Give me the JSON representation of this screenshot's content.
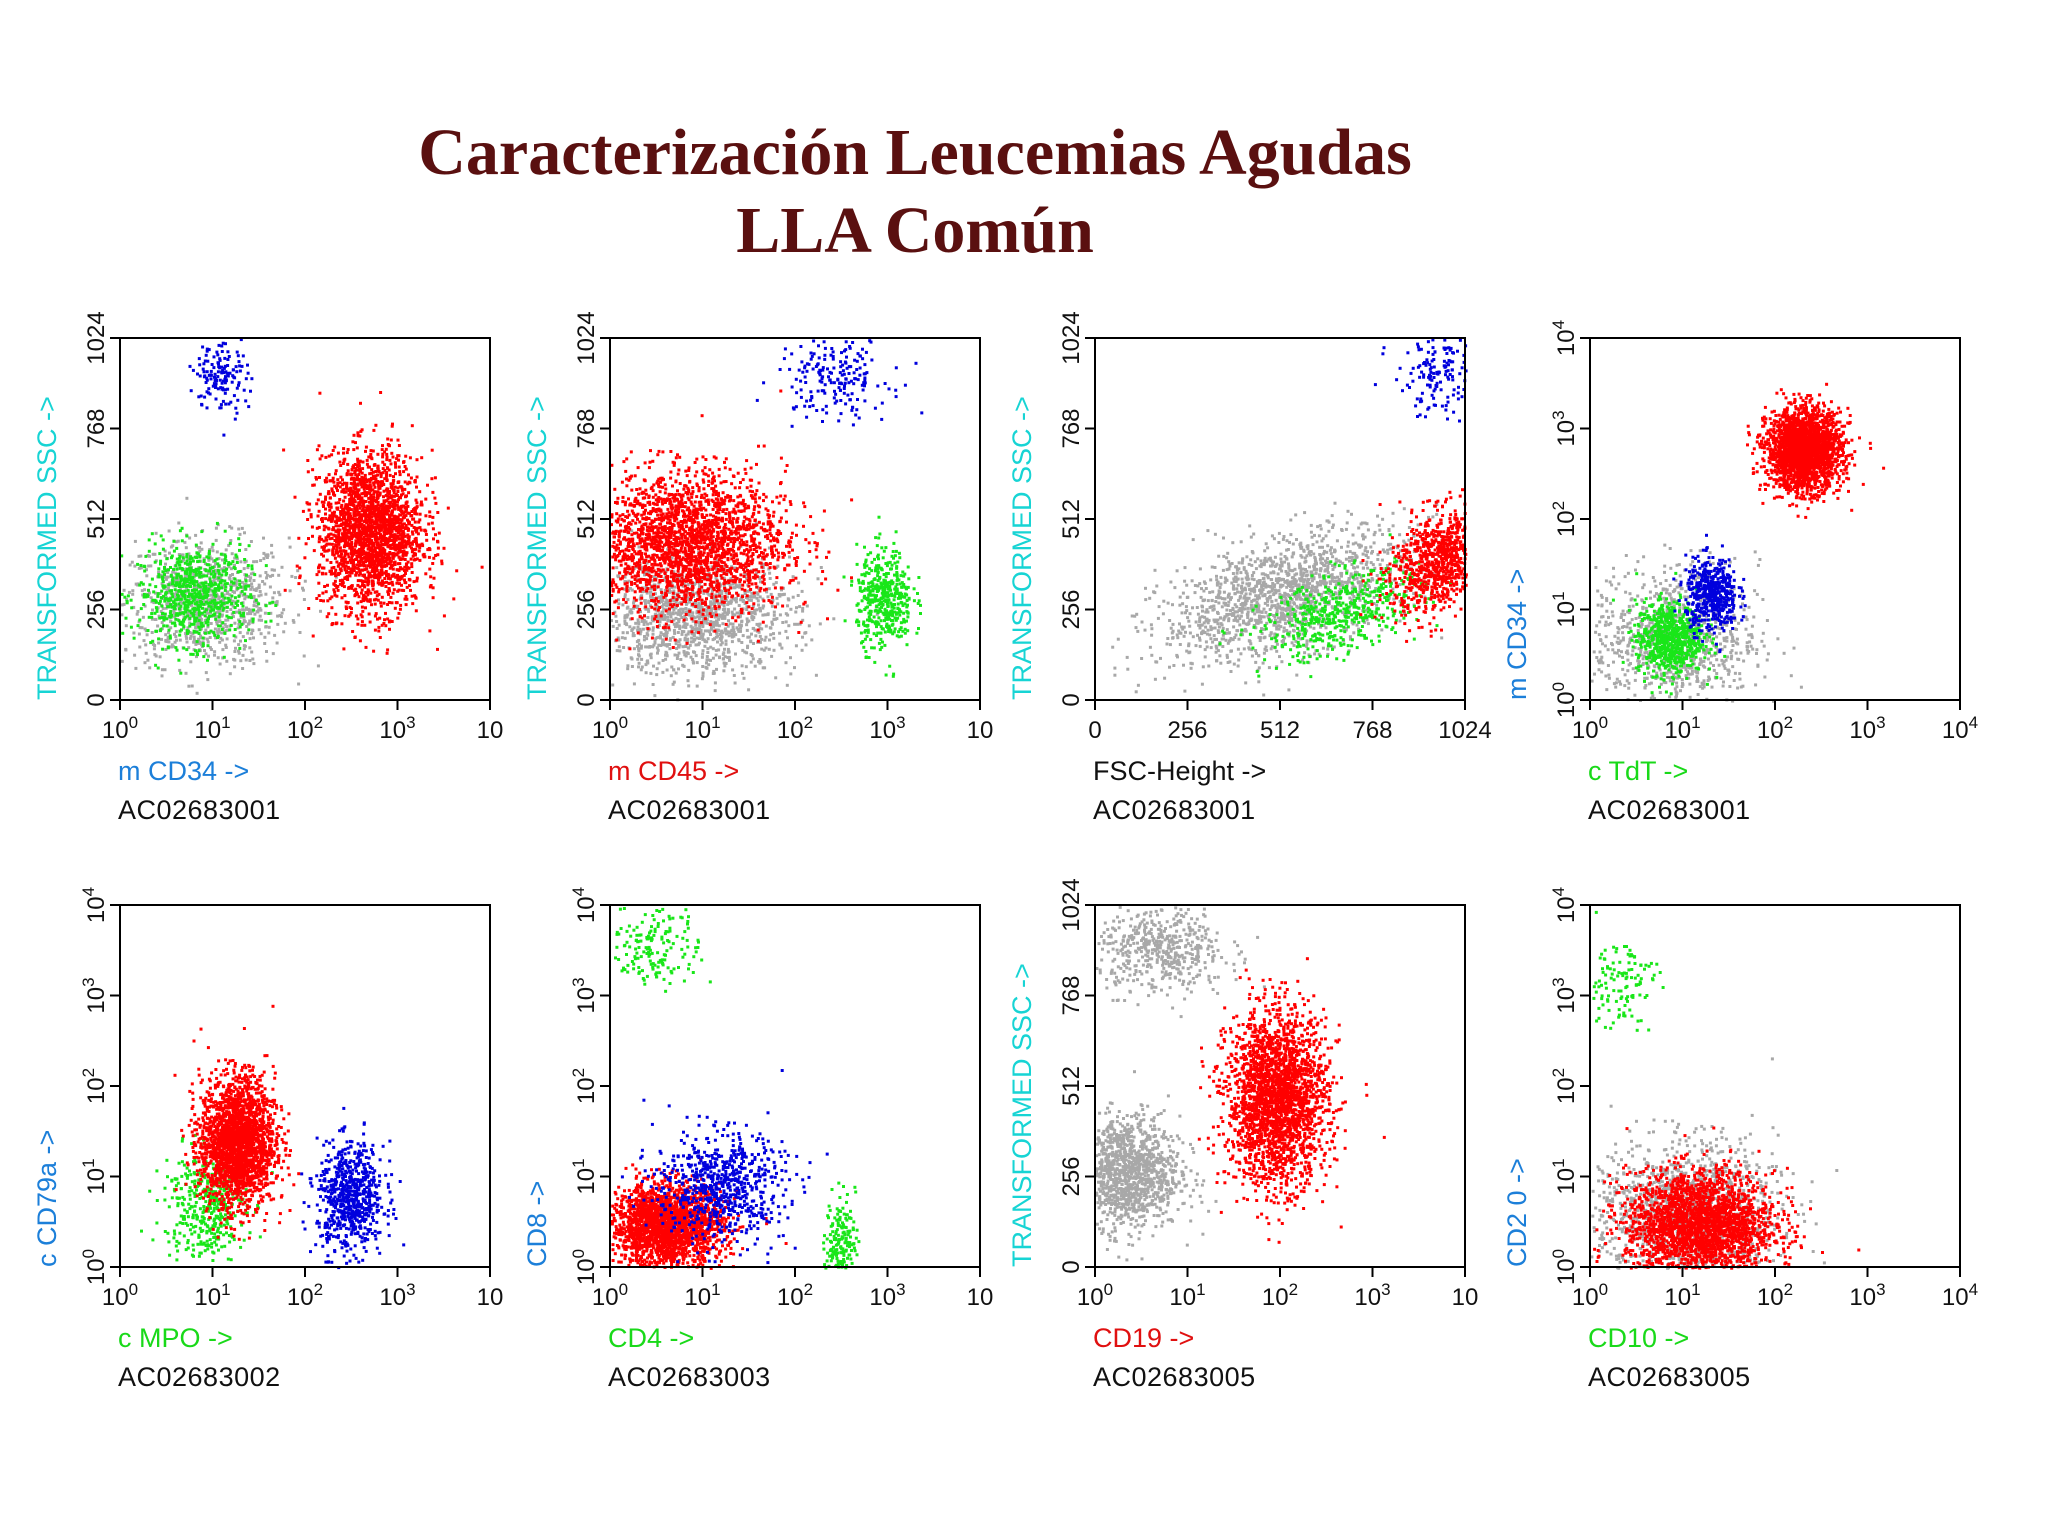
{
  "title": "Caracterización Leucemias Agudas",
  "subtitle": "LLA Común",
  "colors": {
    "title": "#5a1010",
    "red": "#ff0000",
    "blue": "#0000dd",
    "green": "#19e619",
    "gray": "#a8a8a8",
    "cyan": "#17d4d4",
    "lightblue": "#1c7fd9",
    "darkred": "#e01010",
    "limegreen": "#19d919"
  },
  "chart_data": [
    {
      "type": "scatter",
      "title": "",
      "sample": "AC02683001",
      "xlabel": "m CD34 ->",
      "xlabel_color": "#1c7fd9",
      "ylabel": "TRANSFORMED SSC ->",
      "ylabel_color": "#17d4d4",
      "xscale": "log",
      "yscale": "linear",
      "xlim": [
        1,
        10000
      ],
      "ylim": [
        0,
        1024
      ],
      "xticks": [
        "10^0",
        "10^1",
        "10^2",
        "10^3",
        "10"
      ],
      "yticks": [
        "0",
        "256",
        "512",
        "768",
        "1024"
      ],
      "populations": [
        {
          "color": "gray",
          "x": 8,
          "y": 280,
          "sx": 0.45,
          "sy": 90,
          "n": 900
        },
        {
          "color": "green",
          "x": 6,
          "y": 300,
          "sx": 0.3,
          "sy": 70,
          "n": 700
        },
        {
          "color": "red",
          "x": 500,
          "y": 480,
          "sx": 0.28,
          "sy": 110,
          "n": 2200
        },
        {
          "color": "blue",
          "x": 12,
          "y": 930,
          "sx": 0.14,
          "sy": 60,
          "n": 150
        }
      ]
    },
    {
      "type": "scatter",
      "title": "",
      "sample": "AC02683001",
      "xlabel": "m CD45 ->",
      "xlabel_color": "#e01010",
      "ylabel": "TRANSFORMED SSC ->",
      "ylabel_color": "#17d4d4",
      "xscale": "log",
      "yscale": "linear",
      "xlim": [
        1,
        10000
      ],
      "ylim": [
        0,
        1024
      ],
      "xticks": [
        "10^0",
        "10^1",
        "10^2",
        "10^3",
        "10"
      ],
      "yticks": [
        "0",
        "256",
        "512",
        "768",
        "1024"
      ],
      "populations": [
        {
          "color": "gray",
          "x": 8,
          "y": 240,
          "sx": 0.55,
          "sy": 80,
          "n": 1300
        },
        {
          "color": "red",
          "x": 6,
          "y": 450,
          "sx": 0.55,
          "sy": 100,
          "n": 2400
        },
        {
          "color": "green",
          "x": 900,
          "y": 290,
          "sx": 0.15,
          "sy": 70,
          "n": 450
        },
        {
          "color": "blue",
          "x": 250,
          "y": 920,
          "sx": 0.3,
          "sy": 60,
          "n": 200
        }
      ]
    },
    {
      "type": "scatter",
      "title": "",
      "sample": "AC02683001",
      "xlabel": "FSC-Height ->",
      "xlabel_color": "#111111",
      "ylabel": "TRANSFORMED SSC ->",
      "ylabel_color": "#17d4d4",
      "xscale": "linear",
      "yscale": "linear",
      "xlim": [
        0,
        1024
      ],
      "ylim": [
        0,
        1024
      ],
      "xticks": [
        "0",
        "256",
        "512",
        "768",
        "1024"
      ],
      "yticks": [
        "0",
        "256",
        "512",
        "768",
        "1024"
      ],
      "populations": [
        {
          "color": "gray",
          "x": 520,
          "y": 300,
          "sx": 170,
          "sy": 80,
          "n": 1500,
          "trend": 0.28
        },
        {
          "color": "green",
          "x": 680,
          "y": 250,
          "sx": 110,
          "sy": 55,
          "n": 500,
          "trend": 0.3
        },
        {
          "color": "red",
          "x": 950,
          "y": 400,
          "sx": 70,
          "sy": 70,
          "n": 900,
          "trend": 0.4
        },
        {
          "color": "blue",
          "x": 940,
          "y": 920,
          "sx": 60,
          "sy": 60,
          "n": 150
        }
      ]
    },
    {
      "type": "scatter",
      "title": "",
      "sample": "AC02683001",
      "xlabel": "c TdT ->",
      "xlabel_color": "#19d919",
      "ylabel": "m CD34 ->",
      "ylabel_color": "#1c7fd9",
      "xscale": "log",
      "yscale": "log",
      "xlim": [
        1,
        10000
      ],
      "ylim": [
        1,
        10000
      ],
      "xticks": [
        "10^0",
        "10^1",
        "10^2",
        "10^3",
        "10^4"
      ],
      "yticks": [
        "10^0",
        "10^1",
        "10^2",
        "10^3",
        "10^4"
      ],
      "populations": [
        {
          "color": "gray",
          "x": 8,
          "y": 5,
          "sx": 0.45,
          "sy": 0.4,
          "n": 900
        },
        {
          "color": "green",
          "x": 7,
          "y": 5,
          "sx": 0.18,
          "sy": 0.2,
          "n": 700
        },
        {
          "color": "blue",
          "x": 20,
          "y": 15,
          "sx": 0.14,
          "sy": 0.2,
          "n": 500
        },
        {
          "color": "red",
          "x": 200,
          "y": 600,
          "sx": 0.2,
          "sy": 0.22,
          "n": 2200
        }
      ]
    },
    {
      "type": "scatter",
      "title": "",
      "sample": "AC02683002",
      "xlabel": "c MPO ->",
      "xlabel_color": "#19d919",
      "ylabel": "c CD79a ->",
      "ylabel_color": "#1c7fd9",
      "xscale": "log",
      "yscale": "log",
      "xlim": [
        1,
        10000
      ],
      "ylim": [
        1,
        10000
      ],
      "xticks": [
        "10^0",
        "10^1",
        "10^2",
        "10^3",
        "10"
      ],
      "yticks": [
        "10^0",
        "10^1",
        "10^2",
        "10^3",
        "10^4"
      ],
      "populations": [
        {
          "color": "green",
          "x": 8,
          "y": 5,
          "sx": 0.22,
          "sy": 0.3,
          "n": 400
        },
        {
          "color": "red",
          "x": 18,
          "y": 25,
          "sx": 0.2,
          "sy": 0.35,
          "n": 2200
        },
        {
          "color": "blue",
          "x": 300,
          "y": 6,
          "sx": 0.18,
          "sy": 0.3,
          "n": 700
        }
      ]
    },
    {
      "type": "scatter",
      "title": "",
      "sample": "AC02683003",
      "xlabel": "CD4 ->",
      "xlabel_color": "#19d919",
      "ylabel": "CD8 ->",
      "ylabel_color": "#1c7fd9",
      "xscale": "log",
      "yscale": "log",
      "xlim": [
        1,
        10000
      ],
      "ylim": [
        1,
        10000
      ],
      "xticks": [
        "10^0",
        "10^1",
        "10^2",
        "10^3",
        "10"
      ],
      "yticks": [
        "10^0",
        "10^1",
        "10^2",
        "10^3",
        "10^4"
      ],
      "populations": [
        {
          "color": "red",
          "x": 4,
          "y": 3,
          "sx": 0.3,
          "sy": 0.22,
          "n": 2200
        },
        {
          "color": "blue",
          "x": 15,
          "y": 8,
          "sx": 0.35,
          "sy": 0.3,
          "n": 700
        },
        {
          "color": "green",
          "x": 300,
          "y": 2,
          "sx": 0.08,
          "sy": 0.25,
          "n": 180
        },
        {
          "color": "green",
          "x": 3,
          "y": 4000,
          "sx": 0.25,
          "sy": 0.25,
          "n": 180
        }
      ]
    },
    {
      "type": "scatter",
      "title": "",
      "sample": "AC02683005",
      "xlabel": "CD19 ->",
      "xlabel_color": "#e01010",
      "ylabel": "TRANSFORMED SSC ->",
      "ylabel_color": "#17d4d4",
      "xscale": "log",
      "yscale": "linear",
      "xlim": [
        1,
        10000
      ],
      "ylim": [
        0,
        1024
      ],
      "xticks": [
        "10^0",
        "10^1",
        "10^2",
        "10^3",
        "10"
      ],
      "yticks": [
        "0",
        "256",
        "512",
        "768",
        "1024"
      ],
      "populations": [
        {
          "color": "gray",
          "x": 2,
          "y": 270,
          "sx": 0.3,
          "sy": 80,
          "n": 1300
        },
        {
          "color": "gray",
          "x": 5,
          "y": 900,
          "sx": 0.35,
          "sy": 60,
          "n": 500
        },
        {
          "color": "red",
          "x": 90,
          "y": 480,
          "sx": 0.27,
          "sy": 120,
          "n": 2400
        }
      ]
    },
    {
      "type": "scatter",
      "title": "",
      "sample": "AC02683005",
      "xlabel": "CD10 ->",
      "xlabel_color": "#19d919",
      "ylabel": "CD2 0 ->",
      "ylabel_color": "#1c7fd9",
      "xscale": "log",
      "yscale": "log",
      "xlim": [
        1,
        10000
      ],
      "ylim": [
        1,
        10000
      ],
      "xticks": [
        "10^0",
        "10^1",
        "10^2",
        "10^3",
        "10^4"
      ],
      "yticks": [
        "10^0",
        "10^1",
        "10^2",
        "10^3",
        "10^4"
      ],
      "populations": [
        {
          "color": "gray",
          "x": 10,
          "y": 4,
          "sx": 0.5,
          "sy": 0.4,
          "n": 1300
        },
        {
          "color": "red",
          "x": 15,
          "y": 3,
          "sx": 0.4,
          "sy": 0.3,
          "n": 2400
        },
        {
          "color": "green",
          "x": 2,
          "y": 1500,
          "sx": 0.2,
          "sy": 0.25,
          "n": 120
        }
      ]
    }
  ]
}
